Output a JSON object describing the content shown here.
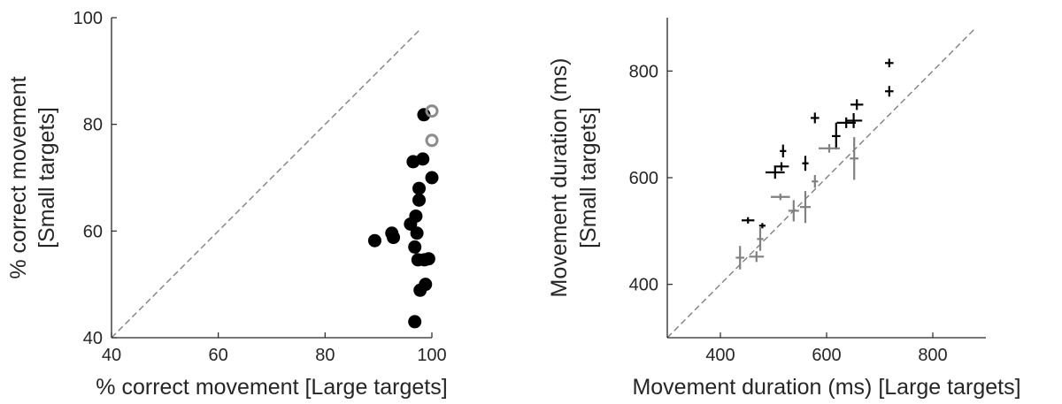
{
  "chart_data": [
    {
      "type": "scatter",
      "title": "",
      "xlabel": "% correct movement [Large targets]",
      "ylabel_lines": [
        "% correct movement",
        "[Small targets]"
      ],
      "xlim": [
        40,
        100
      ],
      "ylim": [
        40,
        100
      ],
      "xticks": [
        40,
        60,
        80,
        100
      ],
      "yticks": [
        40,
        60,
        80,
        100
      ],
      "grid": false,
      "reference_line": "identity (dashed)",
      "colors": {
        "filled": "#000000",
        "open": "#8c8c8c",
        "reference": "#808080",
        "axis": "#262626"
      },
      "series": [
        {
          "marker": "filled-circle",
          "points": [
            [
              98.5,
              81.8
            ],
            [
              96.5,
              73.0
            ],
            [
              98.3,
              73.5
            ],
            [
              100.0,
              70.0
            ],
            [
              97.6,
              68.0
            ],
            [
              97.6,
              65.8
            ],
            [
              97.0,
              62.8
            ],
            [
              96.0,
              61.3
            ],
            [
              89.3,
              58.2
            ],
            [
              92.5,
              59.6
            ],
            [
              92.8,
              58.8
            ],
            [
              97.2,
              59.6
            ],
            [
              96.8,
              57.0
            ],
            [
              97.4,
              54.6
            ],
            [
              98.6,
              54.6
            ],
            [
              99.4,
              54.8
            ],
            [
              98.8,
              50.0
            ],
            [
              97.8,
              48.9
            ],
            [
              96.8,
              43.0
            ]
          ]
        },
        {
          "marker": "open-circle",
          "points": [
            [
              100.0,
              82.5
            ],
            [
              100.0,
              77.0
            ]
          ]
        }
      ]
    },
    {
      "type": "scatter",
      "title": "",
      "xlabel": "Movement duration (ms) [Large targets]",
      "ylabel_lines": [
        "Movement duration (ms)",
        "[Small targets]"
      ],
      "xlim": [
        300,
        900
      ],
      "ylim": [
        300,
        900
      ],
      "xticks": [
        400,
        600,
        800
      ],
      "yticks": [
        400,
        600,
        800
      ],
      "grid": false,
      "reference_line": "identity (dashed)",
      "colors": {
        "dark": "#000000",
        "light": "#808080",
        "reference": "#808080",
        "axis": "#262626"
      },
      "series": [
        {
          "marker": "cross-errorbar",
          "color_key": "dark",
          "points": [
            {
              "x": 718,
              "y": 815,
              "xerr": 8,
              "yerr": 8
            },
            {
              "x": 718,
              "y": 762,
              "xerr": 8,
              "yerr": 10
            },
            {
              "x": 657,
              "y": 737,
              "xerr": 12,
              "yerr": 10
            },
            {
              "x": 651,
              "y": 707,
              "xerr": 16,
              "yerr": 14
            },
            {
              "x": 637,
              "y": 703,
              "xerr": 18,
              "yerr": 10
            },
            {
              "x": 618,
              "y": 678,
              "xerr": 8,
              "yerr": 25
            },
            {
              "x": 578,
              "y": 712,
              "xerr": 8,
              "yerr": 10
            },
            {
              "x": 560,
              "y": 627,
              "xerr": 6,
              "yerr": 14
            },
            {
              "x": 518,
              "y": 650,
              "xerr": 6,
              "yerr": 12
            },
            {
              "x": 515,
              "y": 621,
              "xerr": 14,
              "yerr": 8
            },
            {
              "x": 503,
              "y": 610,
              "xerr": 18,
              "yerr": 12
            },
            {
              "x": 452,
              "y": 520,
              "xerr": 12,
              "yerr": 6
            },
            {
              "x": 479,
              "y": 510,
              "xerr": 6,
              "yerr": 5
            }
          ]
        },
        {
          "marker": "cross-errorbar",
          "color_key": "light",
          "points": [
            {
              "x": 652,
              "y": 636,
              "xerr": 8,
              "yerr": 40
            },
            {
              "x": 605,
              "y": 655,
              "xerr": 20,
              "yerr": 8
            },
            {
              "x": 578,
              "y": 593,
              "xerr": 6,
              "yerr": 12
            },
            {
              "x": 560,
              "y": 545,
              "xerr": 10,
              "yerr": 30
            },
            {
              "x": 538,
              "y": 538,
              "xerr": 10,
              "yerr": 20
            },
            {
              "x": 513,
              "y": 564,
              "xerr": 18,
              "yerr": 6
            },
            {
              "x": 475,
              "y": 485,
              "xerr": 6,
              "yerr": 22
            },
            {
              "x": 468,
              "y": 452,
              "xerr": 14,
              "yerr": 10
            },
            {
              "x": 437,
              "y": 450,
              "xerr": 8,
              "yerr": 22
            }
          ]
        }
      ]
    }
  ]
}
